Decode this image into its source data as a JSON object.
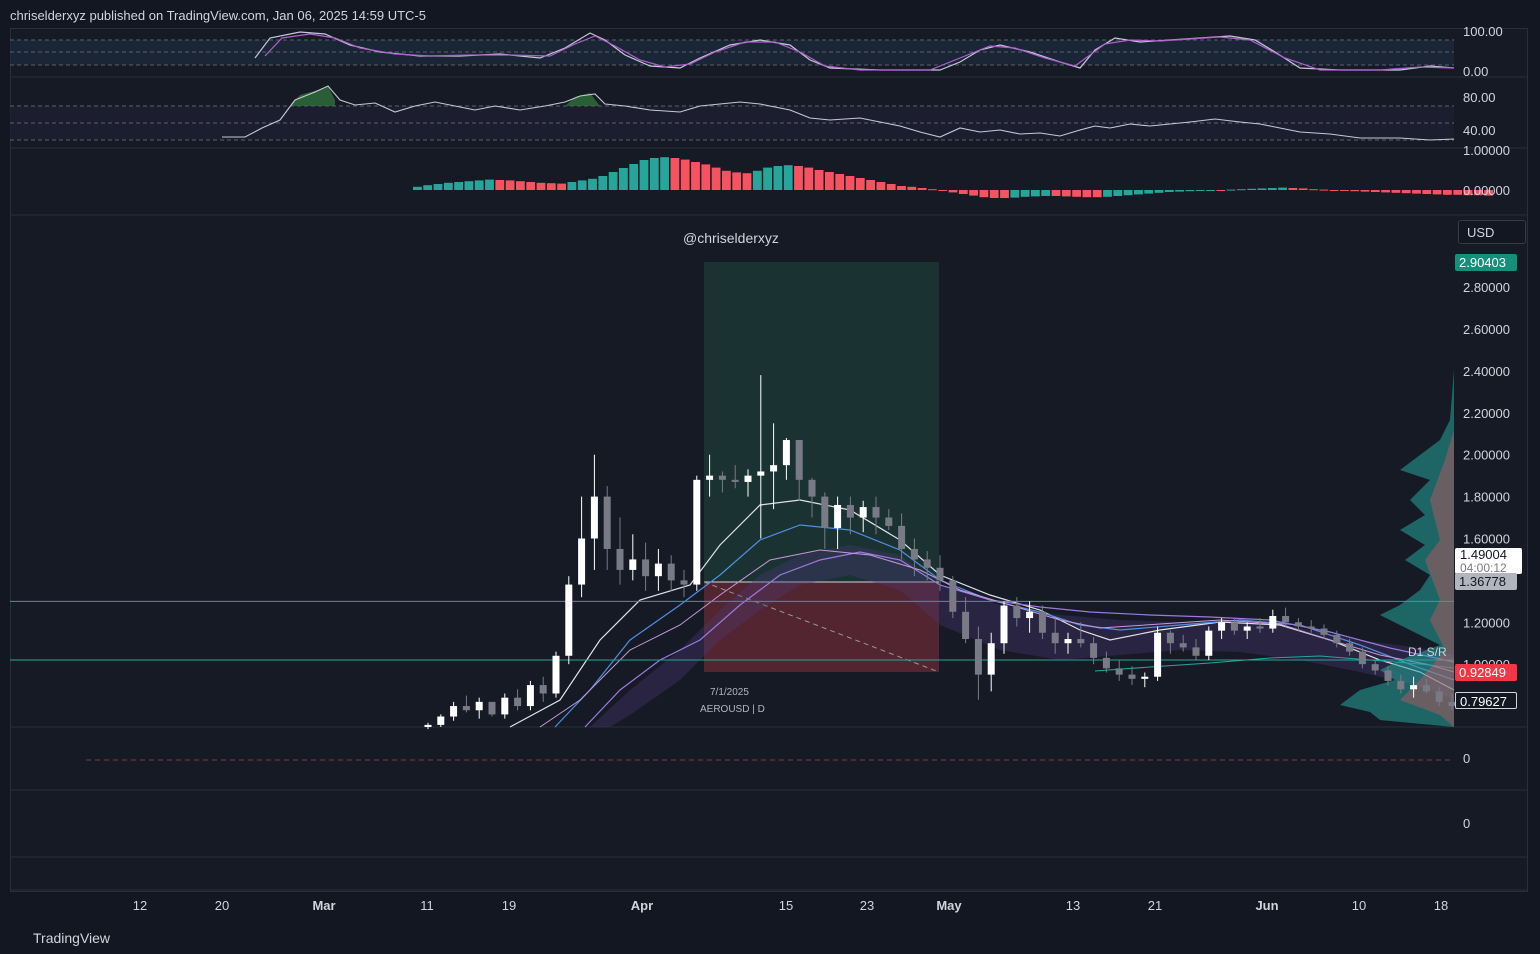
{
  "header": {
    "published_by": "chriselderxyz published on TradingView.com, Jan 06, 2025 14:59 UTC-5"
  },
  "watermark": "@chriselderxyz",
  "currency": "USD",
  "footer": {
    "brand": "TradingView"
  },
  "colors": {
    "background": "#131722",
    "bull": "#ffffff",
    "bear": "#787b86",
    "histogram_up": "#26a69a",
    "histogram_down": "#f7525f",
    "long_target_zone": "#1f3d3d",
    "long_stop_zone": "#5c2a33",
    "sr_line": "#26a69a"
  },
  "chart_data": [
    {
      "type": "line",
      "panel": "stochastic-rsi",
      "y_ticks": [
        "100.00",
        "0.00"
      ],
      "ylim": [
        0,
        100
      ],
      "series": []
    },
    {
      "type": "line",
      "panel": "rsi",
      "y_ticks": [
        "80.00",
        "40.00"
      ],
      "ylim": [
        20,
        100
      ],
      "series": []
    },
    {
      "type": "bar",
      "panel": "momentum-histogram",
      "y_ticks": [
        "1.00000",
        "0.00000"
      ],
      "values": [
        0.08,
        0.12,
        0.15,
        0.18,
        0.2,
        0.22,
        0.24,
        0.26,
        0.25,
        0.24,
        0.22,
        0.2,
        0.18,
        0.17,
        0.16,
        0.2,
        0.24,
        0.28,
        0.35,
        0.45,
        0.55,
        0.65,
        0.75,
        0.8,
        0.82,
        0.8,
        0.76,
        0.7,
        0.64,
        0.56,
        0.48,
        0.44,
        0.42,
        0.48,
        0.56,
        0.6,
        0.62,
        0.6,
        0.56,
        0.5,
        0.45,
        0.4,
        0.35,
        0.3,
        0.25,
        0.2,
        0.15,
        0.1,
        0.08,
        0.05,
        0.02,
        -0.02,
        -0.06,
        -0.1,
        -0.14,
        -0.18,
        -0.2,
        -0.2,
        -0.19,
        -0.17,
        -0.16,
        -0.15,
        -0.15,
        -0.16,
        -0.17,
        -0.18,
        -0.18,
        -0.17,
        -0.15,
        -0.13,
        -0.11,
        -0.09,
        -0.07,
        -0.05,
        -0.04,
        -0.03,
        -0.02,
        -0.01,
        0.0,
        0.01,
        0.02,
        0.03,
        0.04,
        0.05,
        0.06,
        0.05,
        0.04,
        0.02,
        0.01,
        -0.01,
        -0.02,
        -0.03,
        -0.04,
        -0.05,
        -0.06,
        -0.07,
        -0.08,
        -0.09,
        -0.1,
        -0.11,
        -0.12,
        -0.12,
        -0.13,
        -0.13,
        -0.14
      ]
    },
    {
      "type": "candlestick",
      "panel": "price",
      "symbol_label": "AEROUSD | D",
      "date_label": "7/1/2025",
      "annotation": "D1 S/R",
      "ylim": [
        0.7,
        2.92
      ],
      "y_ticks": [
        "2.80000",
        "2.60000",
        "2.40000",
        "2.20000",
        "2.00000",
        "1.80000",
        "1.60000",
        "1.40000",
        "1.20000",
        "1.00000"
      ],
      "x_ticks": [
        "12",
        "20",
        "Mar",
        "11",
        "19",
        "Apr",
        "15",
        "23",
        "May",
        "13",
        "21",
        "Jun",
        "10",
        "18"
      ],
      "price_tags": {
        "target": "2.90403",
        "current": "1.49004",
        "countdown": "04:00:12",
        "entry": "1.36778",
        "stop": "0.92849",
        "last": "0.79627"
      },
      "sr_levels": [
        1.3,
        1.02
      ],
      "candles": [
        [
          0.7,
          0.72,
          0.69,
          0.71
        ],
        [
          0.71,
          0.76,
          0.7,
          0.75
        ],
        [
          0.75,
          0.82,
          0.73,
          0.8
        ],
        [
          0.8,
          0.85,
          0.77,
          0.78
        ],
        [
          0.78,
          0.84,
          0.74,
          0.82
        ],
        [
          0.82,
          0.8,
          0.75,
          0.76
        ],
        [
          0.76,
          0.86,
          0.74,
          0.84
        ],
        [
          0.84,
          0.88,
          0.78,
          0.8
        ],
        [
          0.8,
          0.92,
          0.78,
          0.9
        ],
        [
          0.9,
          0.94,
          0.82,
          0.86
        ],
        [
          0.86,
          1.06,
          0.84,
          1.04
        ],
        [
          1.04,
          1.42,
          1.0,
          1.38
        ],
        [
          1.38,
          1.8,
          1.32,
          1.6
        ],
        [
          1.6,
          2.0,
          1.45,
          1.8
        ],
        [
          1.8,
          1.85,
          1.45,
          1.55
        ],
        [
          1.55,
          1.7,
          1.38,
          1.45
        ],
        [
          1.45,
          1.62,
          1.4,
          1.5
        ],
        [
          1.5,
          1.58,
          1.35,
          1.42
        ],
        [
          1.42,
          1.55,
          1.35,
          1.48
        ],
        [
          1.48,
          1.52,
          1.35,
          1.4
        ],
        [
          1.4,
          1.45,
          1.32,
          1.38
        ],
        [
          1.38,
          1.9,
          1.35,
          1.88
        ],
        [
          1.88,
          2.0,
          1.8,
          1.9
        ],
        [
          1.9,
          1.92,
          1.82,
          1.88
        ],
        [
          1.88,
          1.95,
          1.84,
          1.87
        ],
        [
          1.87,
          1.93,
          1.8,
          1.9
        ],
        [
          1.9,
          2.38,
          1.6,
          1.92
        ],
        [
          1.92,
          2.15,
          1.74,
          1.95
        ],
        [
          1.95,
          2.08,
          1.88,
          2.07
        ],
        [
          2.07,
          2.06,
          1.78,
          1.88
        ],
        [
          1.88,
          1.89,
          1.7,
          1.8
        ],
        [
          1.8,
          1.82,
          1.55,
          1.65
        ],
        [
          1.65,
          1.8,
          1.55,
          1.76
        ],
        [
          1.76,
          1.8,
          1.62,
          1.7
        ],
        [
          1.7,
          1.78,
          1.63,
          1.75
        ],
        [
          1.75,
          1.8,
          1.62,
          1.7
        ],
        [
          1.7,
          1.74,
          1.64,
          1.66
        ],
        [
          1.66,
          1.72,
          1.5,
          1.55
        ],
        [
          1.55,
          1.6,
          1.42,
          1.5
        ],
        [
          1.5,
          1.54,
          1.4,
          1.46
        ],
        [
          1.46,
          1.52,
          1.35,
          1.4
        ],
        [
          1.4,
          1.42,
          1.22,
          1.25
        ],
        [
          1.25,
          1.32,
          1.1,
          1.12
        ],
        [
          1.12,
          1.18,
          0.83,
          0.95
        ],
        [
          0.95,
          1.15,
          0.87,
          1.1
        ],
        [
          1.1,
          1.3,
          1.05,
          1.28
        ],
        [
          1.28,
          1.32,
          1.18,
          1.22
        ],
        [
          1.22,
          1.3,
          1.15,
          1.25
        ],
        [
          1.25,
          1.28,
          1.12,
          1.15
        ],
        [
          1.15,
          1.22,
          1.05,
          1.1
        ],
        [
          1.1,
          1.15,
          1.05,
          1.12
        ],
        [
          1.12,
          1.2,
          1.08,
          1.1
        ],
        [
          1.1,
          1.13,
          1.0,
          1.03
        ],
        [
          1.03,
          1.06,
          0.96,
          0.98
        ],
        [
          0.98,
          1.02,
          0.92,
          0.95
        ],
        [
          0.95,
          0.99,
          0.9,
          0.93
        ],
        [
          0.93,
          0.96,
          0.89,
          0.94
        ],
        [
          0.94,
          1.18,
          0.92,
          1.15
        ],
        [
          1.15,
          1.16,
          1.05,
          1.1
        ],
        [
          1.1,
          1.14,
          1.06,
          1.08
        ],
        [
          1.08,
          1.12,
          1.02,
          1.04
        ],
        [
          1.04,
          1.18,
          1.02,
          1.16
        ],
        [
          1.16,
          1.22,
          1.12,
          1.2
        ],
        [
          1.2,
          1.22,
          1.14,
          1.16
        ],
        [
          1.16,
          1.2,
          1.12,
          1.18
        ],
        [
          1.18,
          1.22,
          1.15,
          1.17
        ],
        [
          1.17,
          1.26,
          1.15,
          1.23
        ],
        [
          1.23,
          1.27,
          1.18,
          1.2
        ],
        [
          1.2,
          1.22,
          1.16,
          1.18
        ],
        [
          1.18,
          1.21,
          1.15,
          1.17
        ],
        [
          1.17,
          1.19,
          1.12,
          1.14
        ],
        [
          1.14,
          1.16,
          1.08,
          1.1
        ],
        [
          1.1,
          1.12,
          1.04,
          1.06
        ],
        [
          1.06,
          1.08,
          0.98,
          1.0
        ],
        [
          1.0,
          1.02,
          0.95,
          0.97
        ],
        [
          0.97,
          0.99,
          0.9,
          0.92
        ],
        [
          0.92,
          0.95,
          0.86,
          0.88
        ],
        [
          0.88,
          0.94,
          0.84,
          0.9
        ],
        [
          0.9,
          0.93,
          0.86,
          0.87
        ],
        [
          0.87,
          0.89,
          0.8,
          0.82
        ],
        [
          0.82,
          0.86,
          0.78,
          0.8
        ]
      ]
    },
    {
      "type": "line",
      "panel": "oscillator-a",
      "y_ticks": [
        "0"
      ],
      "series": []
    },
    {
      "type": "line",
      "panel": "oscillator-b",
      "y_ticks": [
        "0"
      ],
      "series": []
    }
  ]
}
